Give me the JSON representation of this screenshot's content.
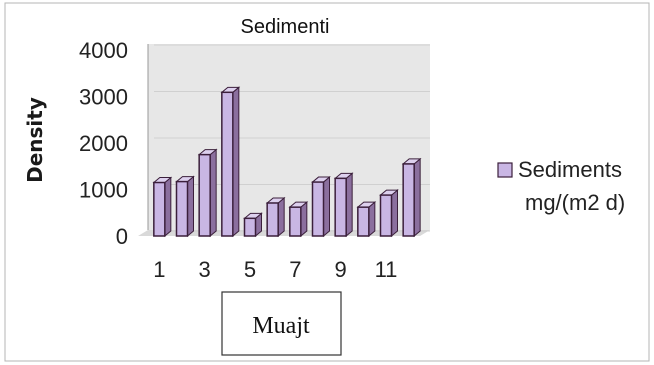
{
  "chart_data": {
    "type": "bar",
    "title": "Sedimenti",
    "xlabel": "Muajt",
    "ylabel": "Density",
    "categories": [
      "1",
      "2",
      "3",
      "4",
      "5",
      "6",
      "7",
      "8",
      "9",
      "10",
      "11",
      "12"
    ],
    "x_tick_labels": [
      "1",
      "3",
      "5",
      "7",
      "9",
      "11"
    ],
    "y_ticks": [
      "0",
      "1000",
      "2000",
      "3000",
      "4000"
    ],
    "ylim": [
      0,
      4000
    ],
    "series": [
      {
        "name_lines": [
          "Sediments",
          "mg/(m2 d)"
        ],
        "values": [
          1150,
          1170,
          1750,
          3090,
          380,
          710,
          620,
          1160,
          1240,
          620,
          880,
          1550
        ],
        "color": "#c9b6e4",
        "edge_color": "#3b1f3b"
      }
    ],
    "legend_position": "right",
    "wall_color": "#e7e7e7"
  }
}
